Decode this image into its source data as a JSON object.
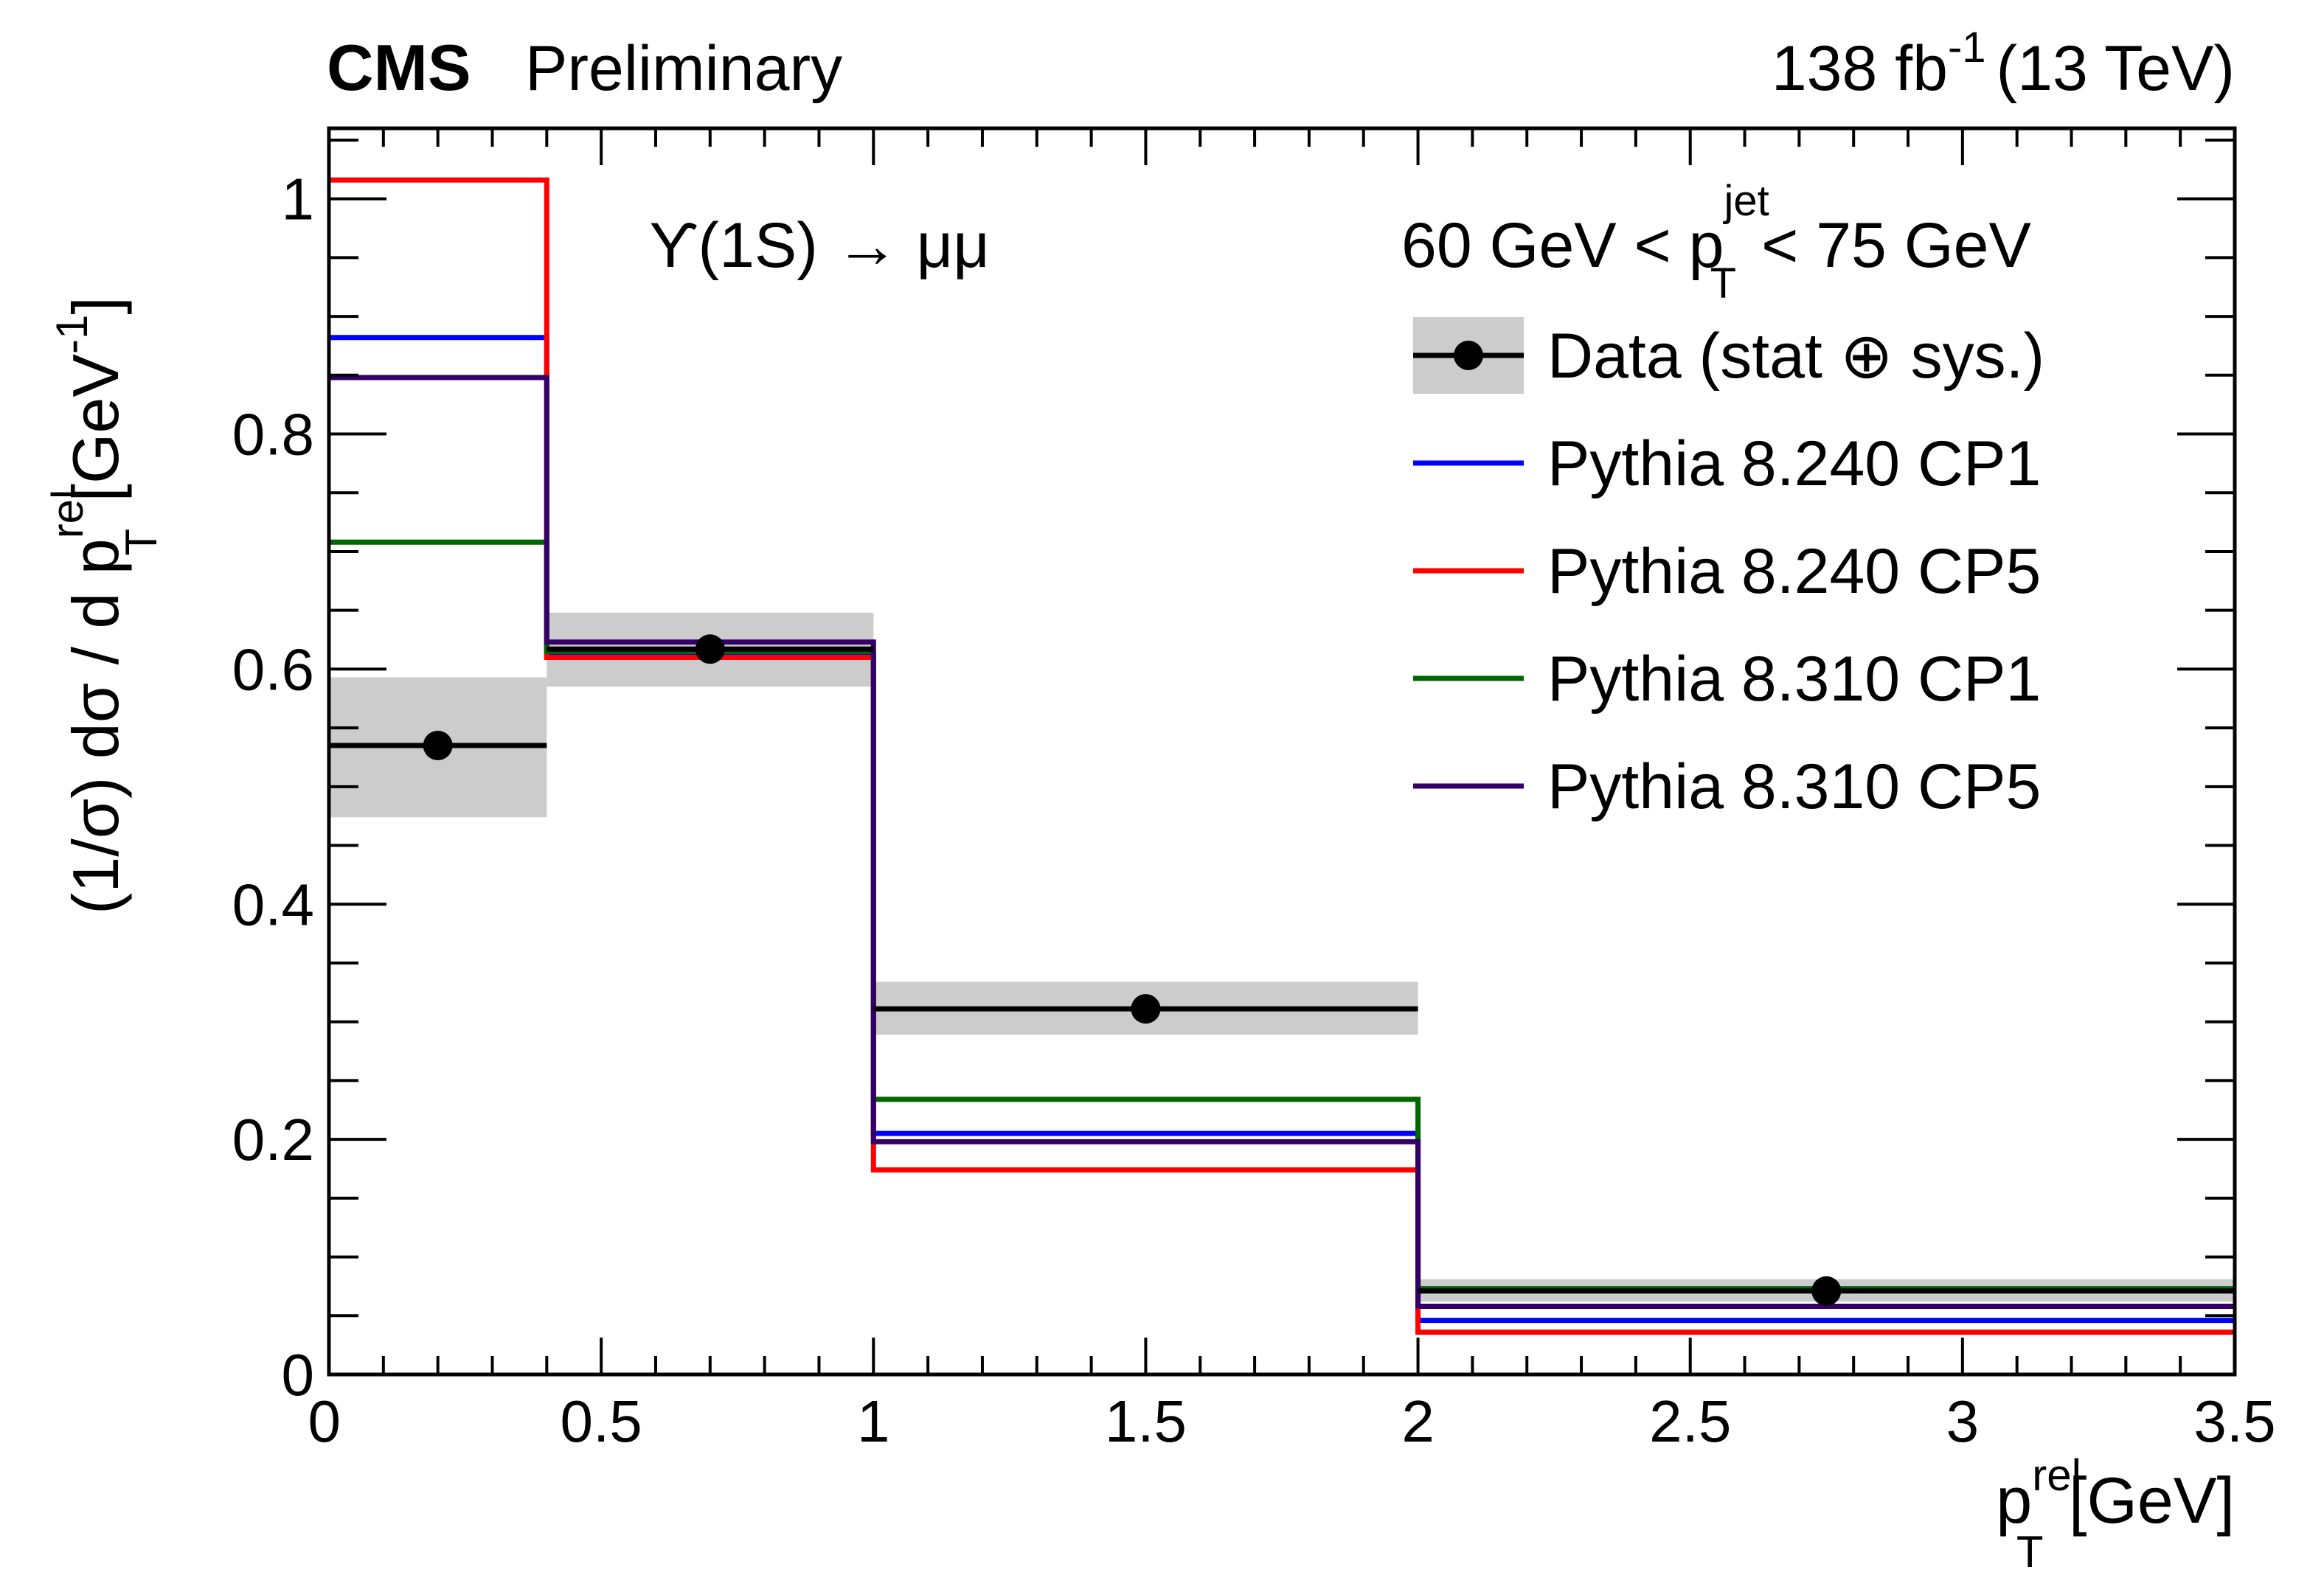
{
  "header": {
    "experiment": "CMS",
    "status": "Preliminary",
    "lumi_value": "138 fb",
    "lumi_exp": "-1",
    "lumi_energy": "(13 TeV)"
  },
  "annotations": {
    "process": "ϒ(1S) → μμ",
    "jet_cut_left": "60 GeV < p",
    "jet_cut_sup": "jet",
    "jet_cut_sub": "T",
    "jet_cut_right": " < 75 GeV"
  },
  "axes": {
    "ylabel_main": "(1/σ) dσ / d p",
    "ylabel_sup": "rel",
    "ylabel_sub": "T",
    "ylabel_unit": " [GeV",
    "ylabel_unit_exp": "-1",
    "ylabel_close": "]",
    "xlabel_p": "p",
    "xlabel_sup": "rel",
    "xlabel_sub": "T",
    "xlabel_unit": " [GeV]"
  },
  "legend": [
    {
      "label": "Data (stat ⊕ sys.)",
      "kind": "data",
      "color": "#000000"
    },
    {
      "label": "Pythia 8.240 CP1",
      "kind": "line",
      "color": "#0000ff"
    },
    {
      "label": "Pythia 8.240 CP5",
      "kind": "line",
      "color": "#ff0000"
    },
    {
      "label": "Pythia 8.310 CP1",
      "kind": "line",
      "color": "#006600"
    },
    {
      "label": "Pythia 8.310 CP5",
      "kind": "line",
      "color": "#330066"
    }
  ],
  "chart_data": {
    "type": "step-histogram",
    "xlim": [
      0,
      3.5
    ],
    "ylim": [
      0,
      1.06
    ],
    "x_ticks": [
      0,
      0.5,
      1,
      1.5,
      2,
      2.5,
      3,
      3.5
    ],
    "x_tick_labels": [
      "0",
      "0.5",
      "1",
      "1.5",
      "2",
      "2.5",
      "3",
      "3.5"
    ],
    "y_ticks": [
      0,
      0.2,
      0.4,
      0.6,
      0.8,
      1
    ],
    "y_tick_labels": [
      "0",
      "0.2",
      "0.4",
      "0.6",
      "0.8",
      "1"
    ],
    "bin_edges": [
      0,
      0.4,
      1,
      2,
      3.5
    ],
    "data": {
      "name": "Data (stat ⊕ sys.)",
      "x": [
        0.2,
        0.7,
        1.5,
        2.75
      ],
      "y": [
        0.535,
        0.617,
        0.311,
        0.071
      ],
      "band_low": [
        0.474,
        0.585,
        0.289,
        0.062
      ],
      "band_high": [
        0.593,
        0.648,
        0.334,
        0.081
      ],
      "color": "#000000",
      "band_color": "#cccccc"
    },
    "series": [
      {
        "name": "Pythia 8.240 CP1",
        "color": "#0000ff",
        "values": [
          0.882,
          0.612,
          0.205,
          0.046
        ]
      },
      {
        "name": "Pythia 8.240 CP5",
        "color": "#ff0000",
        "values": [
          1.016,
          0.61,
          0.174,
          0.036
        ]
      },
      {
        "name": "Pythia 8.310 CP1",
        "color": "#006600",
        "values": [
          0.708,
          0.615,
          0.234,
          0.073
        ]
      },
      {
        "name": "Pythia 8.310 CP5",
        "color": "#330066",
        "values": [
          0.848,
          0.623,
          0.198,
          0.058
        ]
      }
    ]
  }
}
